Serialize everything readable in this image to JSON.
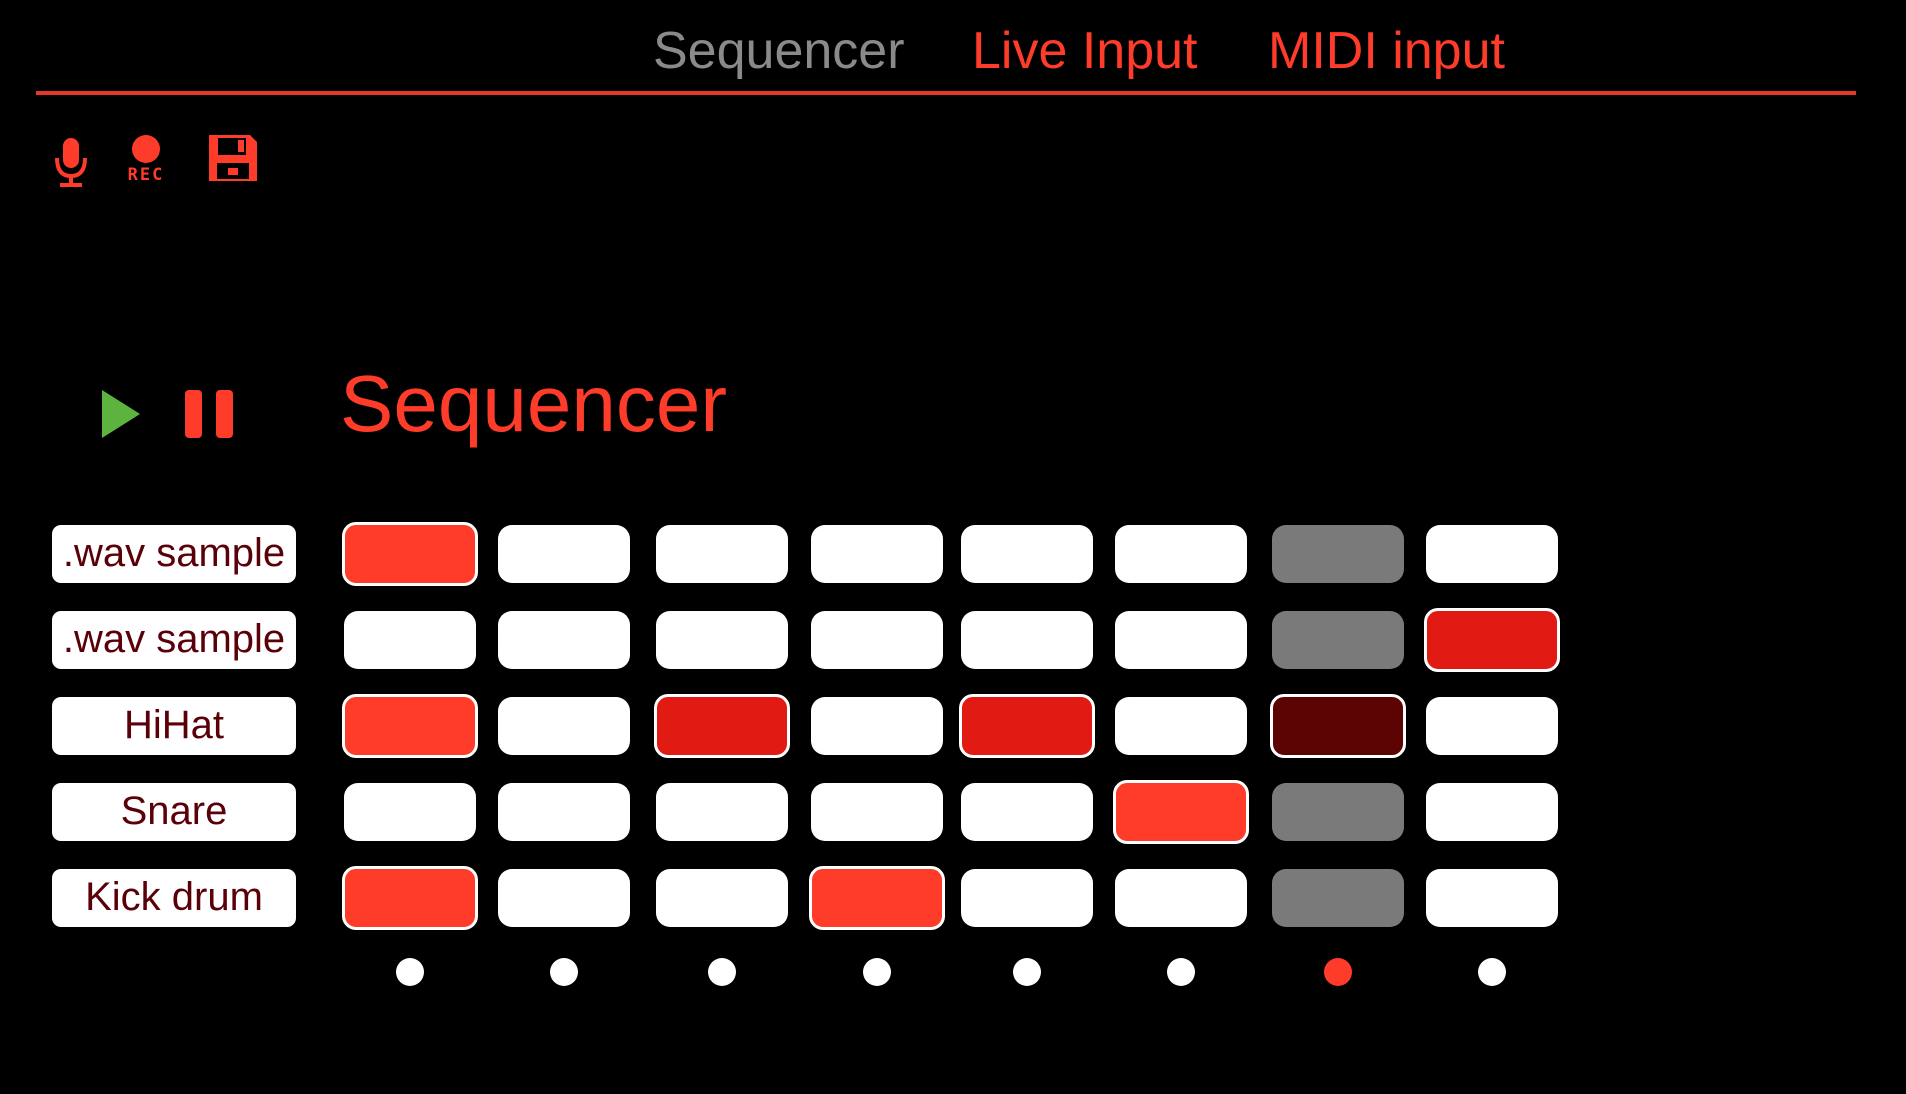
{
  "nav": {
    "tabs": [
      {
        "label": "Sequencer",
        "color": "#8a8a8a"
      },
      {
        "label": "Live Input",
        "color": "#ff3b2a"
      },
      {
        "label": "MIDI input",
        "color": "#ff3b2a"
      }
    ],
    "rule_color": "#e8372a"
  },
  "toolbar": {
    "icons": [
      "microphone-icon",
      "record-icon",
      "save-icon"
    ],
    "rec_label": "REC",
    "color": "#ff3b2a"
  },
  "transport": {
    "play_icon": "play-icon",
    "pause_icon": "pause-icon",
    "play_color": "#5cb43e",
    "pause_color": "#ff3b2a"
  },
  "sequencer": {
    "title": "Sequencer",
    "title_color": "#ff3b2a",
    "label_text_color": "#5a0008",
    "tracks": [
      {
        "label": ".wav sample",
        "steps": [
          "on",
          "off",
          "off",
          "off",
          "off",
          "off",
          "current",
          "off"
        ]
      },
      {
        "label": ".wav sample",
        "steps": [
          "off",
          "off",
          "off",
          "off",
          "off",
          "off",
          "current",
          "on-deep"
        ]
      },
      {
        "label": "HiHat",
        "steps": [
          "on",
          "off",
          "on-deep",
          "off",
          "on-deep",
          "off",
          "current-dark",
          "off"
        ]
      },
      {
        "label": "Snare",
        "steps": [
          "off",
          "off",
          "off",
          "off",
          "off",
          "on",
          "current",
          "off"
        ]
      },
      {
        "label": "Kick drum",
        "steps": [
          "on",
          "off",
          "off",
          "on",
          "off",
          "off",
          "current",
          "off"
        ]
      }
    ],
    "step_colors": {
      "on": "#ff3b2a",
      "on-deep": "#e21a14",
      "off": "#ffffff",
      "current": "#7a7a7a",
      "current-dark": "#5c0404"
    },
    "current_step": 7,
    "indicator_color": "#ffffff",
    "indicator_active_color": "#ff3b2a"
  }
}
